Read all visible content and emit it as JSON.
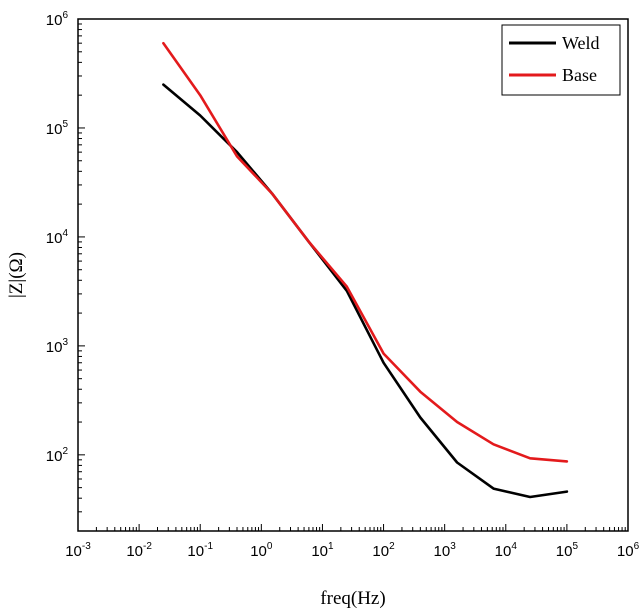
{
  "chart_data": {
    "type": "line",
    "xlabel": "freq(Hz)",
    "ylabel": "|Z|(Ω)",
    "x_scale": "log",
    "y_scale": "log",
    "xlim": [
      0.001,
      1000000
    ],
    "ylim": [
      20,
      1000000
    ],
    "x_ticks": [
      {
        "value": 0.001,
        "base": "10",
        "exp": "-3"
      },
      {
        "value": 0.01,
        "base": "10",
        "exp": "-2"
      },
      {
        "value": 0.1,
        "base": "10",
        "exp": "-1"
      },
      {
        "value": 1,
        "base": "10",
        "exp": "0"
      },
      {
        "value": 10,
        "base": "10",
        "exp": "1"
      },
      {
        "value": 100,
        "base": "10",
        "exp": "2"
      },
      {
        "value": 1000,
        "base": "10",
        "exp": "3"
      },
      {
        "value": 10000,
        "base": "10",
        "exp": "4"
      },
      {
        "value": 100000,
        "base": "10",
        "exp": "5"
      },
      {
        "value": 1000000,
        "base": "10",
        "exp": "6"
      }
    ],
    "y_ticks": [
      {
        "value": 100,
        "base": "10",
        "exp": "2"
      },
      {
        "value": 1000,
        "base": "10",
        "exp": "3"
      },
      {
        "value": 10000,
        "base": "10",
        "exp": "4"
      },
      {
        "value": 100000,
        "base": "10",
        "exp": "5"
      },
      {
        "value": 1000000,
        "base": "10",
        "exp": "6"
      }
    ],
    "grid": false,
    "legend_position": "top-right",
    "series": [
      {
        "name": "Weld",
        "color": "#000000",
        "points": [
          [
            0.025,
            250000
          ],
          [
            0.1,
            130000
          ],
          [
            0.4,
            60000
          ],
          [
            1.5,
            25000
          ],
          [
            6,
            9000
          ],
          [
            25,
            3200
          ],
          [
            100,
            700
          ],
          [
            400,
            220
          ],
          [
            1600,
            85
          ],
          [
            6300,
            49
          ],
          [
            25000,
            41
          ],
          [
            100000,
            46
          ]
        ]
      },
      {
        "name": "Base",
        "color": "#e31a1c",
        "points": [
          [
            0.025,
            600000
          ],
          [
            0.1,
            200000
          ],
          [
            0.4,
            55000
          ],
          [
            1.5,
            25000
          ],
          [
            6,
            9000
          ],
          [
            25,
            3500
          ],
          [
            100,
            850
          ],
          [
            400,
            380
          ],
          [
            1600,
            200
          ],
          [
            6300,
            125
          ],
          [
            25000,
            93
          ],
          [
            100000,
            87
          ]
        ]
      }
    ]
  }
}
